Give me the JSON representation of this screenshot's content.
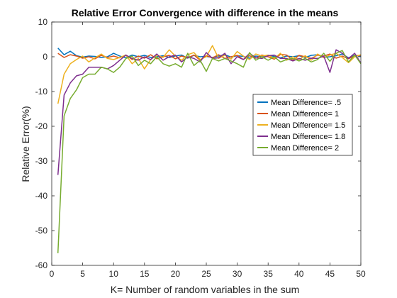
{
  "chart_data": {
    "type": "line",
    "title": "Relative Error Convergence with difference in the means",
    "xlabel": "K= Number of random variables in the sum",
    "ylabel": "Relative Error(%)",
    "xlim": [
      0,
      50
    ],
    "ylim": [
      -60,
      10
    ],
    "xticks": [
      0,
      5,
      10,
      15,
      20,
      25,
      30,
      35,
      40,
      45,
      50
    ],
    "yticks": [
      10,
      0,
      -10,
      -20,
      -30,
      -40,
      -50,
      -60
    ],
    "grid": false,
    "legend_location": "right",
    "x": [
      1,
      2,
      3,
      4,
      5,
      6,
      7,
      8,
      9,
      10,
      11,
      12,
      13,
      14,
      15,
      16,
      17,
      18,
      19,
      20,
      21,
      22,
      23,
      24,
      25,
      26,
      27,
      28,
      29,
      30,
      31,
      32,
      33,
      34,
      35,
      36,
      37,
      38,
      39,
      40,
      41,
      42,
      43,
      44,
      45,
      46,
      47,
      48,
      49,
      50
    ],
    "series": [
      {
        "name": "Mean Difference= .5",
        "color": "#0072BD",
        "values": [
          2.5,
          0.6,
          1.6,
          0.3,
          -0.1,
          0.2,
          0.1,
          -0.2,
          0.0,
          1.0,
          0.2,
          -0.3,
          0.5,
          0.0,
          0.4,
          -0.2,
          0.0,
          0.3,
          -0.2,
          0.2,
          0.5,
          -0.4,
          0.4,
          0.0,
          0.1,
          -0.2,
          0.2,
          0.6,
          -0.1,
          0.3,
          0.1,
          -0.4,
          0.2,
          0.0,
          0.4,
          0.1,
          -0.3,
          0.2,
          0.0,
          0.3,
          -0.2,
          0.4,
          0.6,
          -0.2,
          0.0,
          0.3,
          0.8,
          -0.3,
          0.4,
          0.2
        ]
      },
      {
        "name": "Mean Difference= 1",
        "color": "#D95319",
        "values": [
          1.0,
          -0.2,
          0.6,
          0.2,
          -0.4,
          0.0,
          -0.6,
          0.4,
          -0.2,
          0.2,
          -0.3,
          0.5,
          -0.8,
          0.2,
          -0.4,
          0.6,
          -0.6,
          0.0,
          0.4,
          -0.6,
          0.2,
          -0.3,
          0.5,
          -1.0,
          0.3,
          -0.3,
          0.6,
          -0.5,
          0.0,
          0.4,
          -0.8,
          0.3,
          -0.4,
          0.5,
          0.0,
          -0.7,
          0.7,
          0.5,
          -1.0,
          0.4,
          0.0,
          -0.5,
          0.5,
          0.2,
          0.8,
          -0.4,
          0.2,
          -0.6,
          0.3,
          0.4
        ]
      },
      {
        "name": "Mean Difference= 1.5",
        "color": "#EDB120",
        "values": [
          -13.5,
          -5.0,
          -2.0,
          -0.8,
          0.2,
          -1.5,
          -0.3,
          0.8,
          -0.5,
          -0.8,
          -0.2,
          0.5,
          -2.0,
          -0.5,
          -3.5,
          -0.8,
          0.5,
          -0.2,
          2.0,
          0.2,
          -1.0,
          0.6,
          1.2,
          -0.8,
          0.0,
          3.2,
          -0.5,
          0.5,
          -0.7,
          1.5,
          0.2,
          -0.8,
          0.8,
          0.2,
          0.5,
          -0.5,
          1.0,
          -1.0,
          0.0,
          -0.8,
          0.3,
          -1.0,
          0.8,
          -0.3,
          0.5,
          1.0,
          -0.2,
          -1.7,
          0.0,
          0.6
        ]
      },
      {
        "name": "Mean Difference= 1.8",
        "color": "#7E2F8E",
        "values": [
          -34.0,
          -11.0,
          -7.5,
          -5.5,
          -5.0,
          -3.0,
          -3.0,
          -3.0,
          -3.5,
          -2.5,
          -1.0,
          0.5,
          -0.5,
          -1.0,
          0.0,
          -0.8,
          0.8,
          -1.0,
          0.0,
          0.5,
          -1.5,
          0.0,
          -0.5,
          -1.5,
          1.2,
          -0.5,
          -0.3,
          1.0,
          -2.0,
          0.0,
          -0.8,
          1.0,
          -0.3,
          -0.5,
          0.3,
          0.5,
          -0.5,
          -0.5,
          -1.2,
          -0.5,
          -1.0,
          -0.4,
          -0.5,
          0.2,
          -4.5,
          2.0,
          1.0,
          -0.5,
          1.0,
          -1.8
        ]
      },
      {
        "name": "Mean Difference= 2",
        "color": "#77AC30",
        "values": [
          -56.5,
          -17.0,
          -12.0,
          -9.5,
          -6.0,
          -5.0,
          -5.0,
          -3.0,
          -3.5,
          -4.5,
          -3.0,
          -0.5,
          0.2,
          -2.5,
          -1.0,
          -2.0,
          0.0,
          -2.0,
          -2.7,
          -2.0,
          -3.0,
          1.0,
          -2.5,
          -1.0,
          -4.2,
          -0.5,
          -1.2,
          -0.5,
          -1.2,
          -2.0,
          -3.0,
          1.2,
          -1.0,
          0.0,
          -1.0,
          0.0,
          -1.5,
          -0.8,
          -0.5,
          -1.2,
          -0.5,
          -1.5,
          -0.8,
          1.0,
          -1.3,
          1.0,
          1.8,
          -1.5,
          0.5,
          -2.0
        ]
      }
    ]
  }
}
